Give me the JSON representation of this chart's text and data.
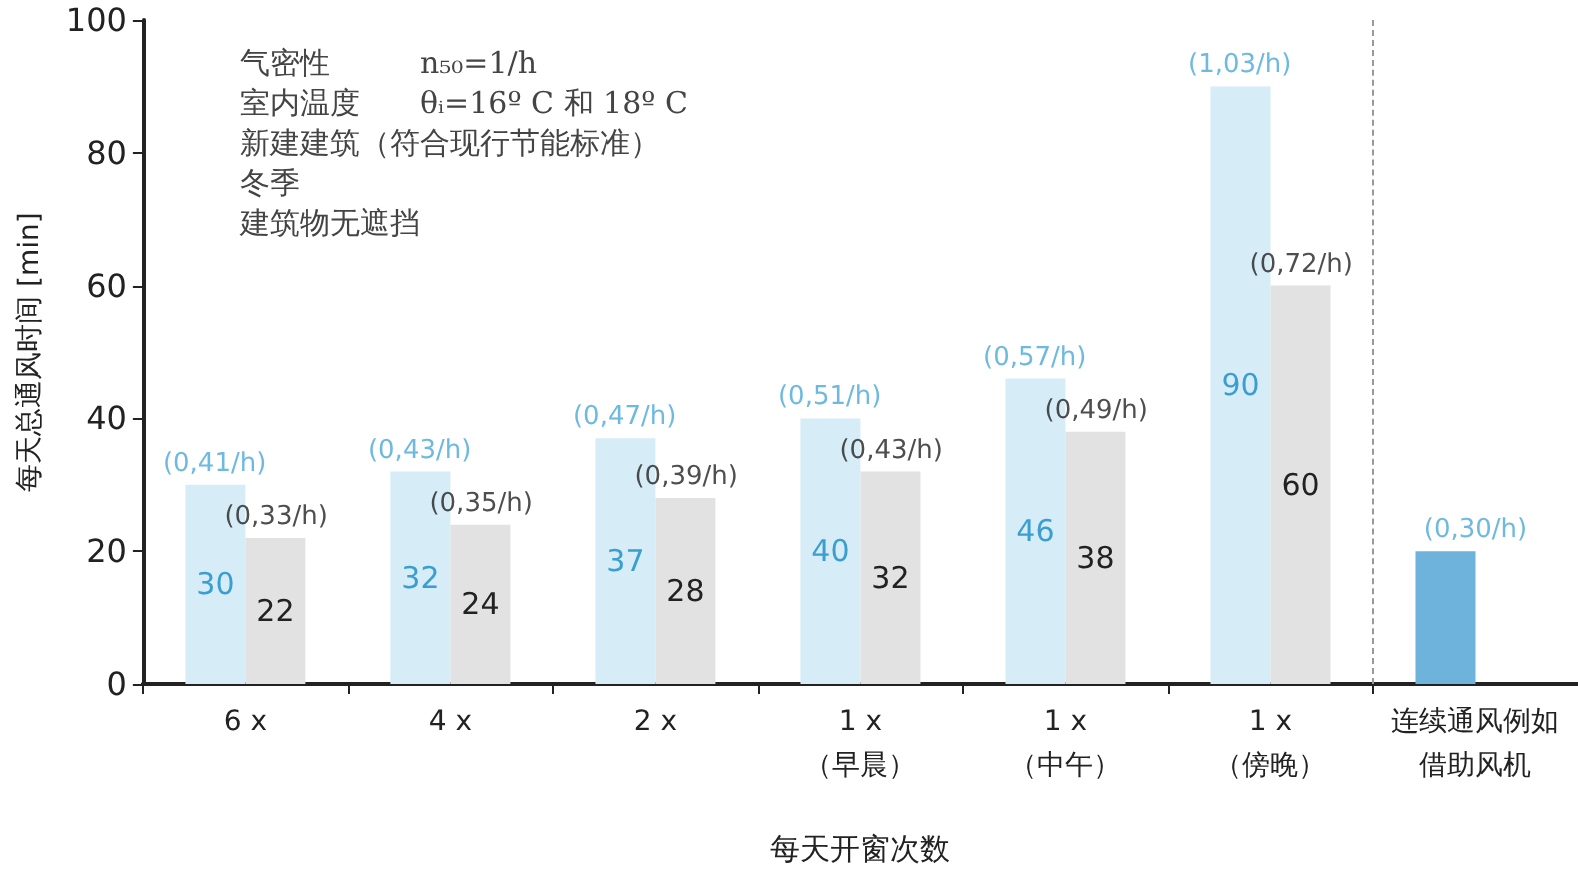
{
  "chart_data": {
    "type": "bar",
    "ylabel": "每天总通风时间 [min]",
    "xlabel": "每天开窗次数",
    "categories": [
      "6 x",
      "4 x",
      "2 x",
      "1 x\n（早晨）",
      "1 x\n（中午）",
      "1 x\n（傍晚）",
      "连续通风例如借助风机"
    ],
    "series": [
      {
        "color": "#d6ecf7",
        "colors": [
          null,
          null,
          null,
          null,
          null,
          null,
          "#6db3dc"
        ],
        "values": [
          30,
          32,
          37,
          40,
          46,
          90,
          20
        ],
        "value_labels": [
          "30",
          "32",
          "37",
          "40",
          "46",
          "90",
          null
        ]
      },
      {
        "color": "#e2e2e2",
        "values": [
          22,
          24,
          28,
          32,
          38,
          60,
          null
        ],
        "value_labels": [
          "22",
          "24",
          "28",
          "32",
          "38",
          "60",
          null
        ]
      }
    ],
    "ylim": [
      0,
      100
    ],
    "yticks": [
      0,
      20,
      40,
      60,
      80,
      100
    ],
    "grid": false,
    "annotations": [
      "气密性　　　n₅₀=1/h",
      "室内温度　　θᵢ=16º C 和 18º C",
      "新建建筑（符合现行节能标准）",
      "冬季",
      "建筑物无遮挡",
      {
        "text": "(0,41/h)",
        "x": "6 x",
        "y": 30
      },
      {
        "text": "(0,33/h)",
        "x": "6 x",
        "y": 22
      },
      {
        "text": "(0,43/h)",
        "x": "4 x",
        "y": 32
      },
      {
        "text": "(0,35/h)",
        "x": "4 x",
        "y": 24
      },
      {
        "text": "(0,47/h)",
        "x": "2 x",
        "y": 37
      },
      {
        "text": "(0,39/h)",
        "x": "2 x",
        "y": 28
      },
      {
        "text": "(0,51/h)",
        "x": "1 x\n（早晨）",
        "y": 40
      },
      {
        "text": "(0,43/h)",
        "x": "1 x\n（早晨）",
        "y": 32
      },
      {
        "text": "(0,57/h)",
        "x": "1 x\n（中午）",
        "y": 46
      },
      {
        "text": "(0,49/h)",
        "x": "1 x\n（中午）",
        "y": 38
      },
      {
        "text": "(1,03/h)",
        "x": "1 x\n（傍晚）",
        "y": 90
      },
      {
        "text": "(0,72/h)",
        "x": "1 x\n（傍晚）",
        "y": 60
      },
      {
        "text": "(0,30/h)",
        "x": "连续通风例如借助风机",
        "y": 20
      }
    ]
  }
}
